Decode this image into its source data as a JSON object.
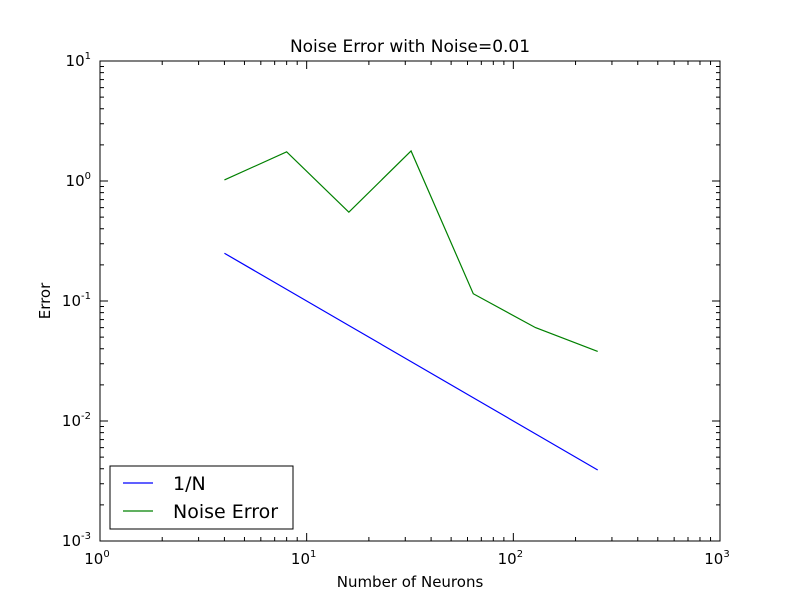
{
  "chart_data": {
    "type": "line",
    "title": "Noise Error with Noise=0.01",
    "xlabel": "Number of Neurons",
    "ylabel": "Error",
    "xscale": "log",
    "yscale": "log",
    "xlim": [
      1,
      1000
    ],
    "ylim": [
      0.001,
      10
    ],
    "x_ticks": [
      {
        "value": 1,
        "base": "10",
        "exp": "0"
      },
      {
        "value": 10,
        "base": "10",
        "exp": "1"
      },
      {
        "value": 100,
        "base": "10",
        "exp": "2"
      },
      {
        "value": 1000,
        "base": "10",
        "exp": "3"
      }
    ],
    "y_ticks": [
      {
        "value": 0.001,
        "base": "10",
        "exp": "-3"
      },
      {
        "value": 0.01,
        "base": "10",
        "exp": "-2"
      },
      {
        "value": 0.1,
        "base": "10",
        "exp": "-1"
      },
      {
        "value": 1,
        "base": "10",
        "exp": "0"
      },
      {
        "value": 10,
        "base": "10",
        "exp": "1"
      }
    ],
    "x": [
      4,
      8,
      16,
      32,
      64,
      128,
      256
    ],
    "series": [
      {
        "name": "1/N",
        "color": "#0000ff",
        "values": [
          0.25,
          0.125,
          0.0625,
          0.03125,
          0.015625,
          0.0078125,
          0.00390625
        ]
      },
      {
        "name": "Noise Error",
        "color": "#008000",
        "values": [
          1.02,
          1.75,
          0.55,
          1.78,
          0.115,
          0.06,
          0.038
        ]
      }
    ],
    "legend": {
      "position": "lower-left"
    },
    "grid": false
  }
}
